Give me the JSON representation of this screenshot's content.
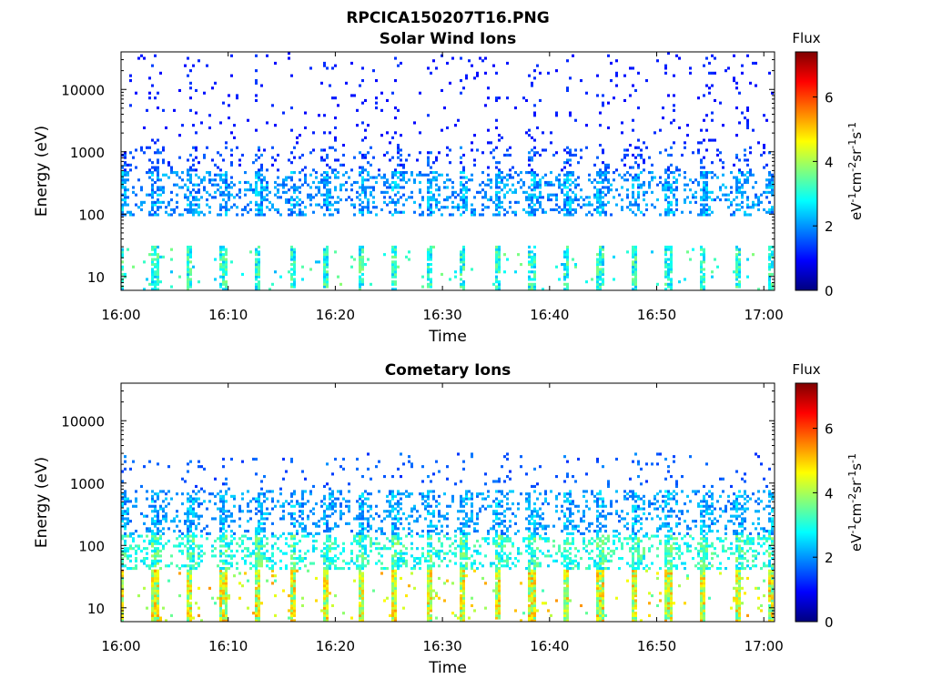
{
  "figure": {
    "title": "RPCICA150207T16.PNG",
    "colors": {
      "colormap": [
        "#00007f",
        "#0000ff",
        "#007fff",
        "#00ffff",
        "#7fff7f",
        "#ffff00",
        "#ff7f00",
        "#ff0000",
        "#7f0000"
      ],
      "background": "#ffffff",
      "axis": "#000000"
    }
  },
  "chart_data": [
    {
      "type": "heatmap",
      "title": "Solar Wind Ions",
      "xlabel": "Time",
      "ylabel": "Energy (eV)",
      "x_ticks": [
        "16:00",
        "16:10",
        "16:20",
        "16:30",
        "16:40",
        "16:50",
        "17:00"
      ],
      "x_range_minutes": [
        0,
        61
      ],
      "y_scale": "log",
      "y_ticks": [
        "10",
        "100",
        "1000",
        "10000"
      ],
      "y_tick_values": [
        10,
        100,
        1000,
        10000
      ],
      "ylim": [
        6,
        40000
      ],
      "colorbar": {
        "title": "Flux",
        "label": "eV-1cm-2sr-1s-1",
        "ticks": [
          "0",
          "2",
          "4",
          "6"
        ],
        "tick_values": [
          0,
          2,
          4,
          6
        ],
        "range": [
          0,
          7.4
        ]
      },
      "pattern": {
        "sweep_period_minutes": 3.2,
        "bands": [
          {
            "energy_range_eV": [
              6,
              30
            ],
            "flux_range": [
              2.2,
              3.8
            ],
            "density": 0.55
          },
          {
            "energy_range_eV": [
              95,
              500
            ],
            "flux_range": [
              1.5,
              2.8
            ],
            "density": 0.55
          },
          {
            "energy_range_eV": [
              400,
              1200
            ],
            "flux_range": [
              1.0,
              2.0
            ],
            "density": 0.22
          },
          {
            "energy_range_eV": [
              1200,
              40000
            ],
            "flux_range": [
              0.9,
              1.4
            ],
            "density": 0.06
          }
        ]
      },
      "grid": false
    },
    {
      "type": "heatmap",
      "title": "Cometary Ions",
      "xlabel": "Time",
      "ylabel": "Energy (eV)",
      "x_ticks": [
        "16:00",
        "16:10",
        "16:20",
        "16:30",
        "16:40",
        "16:50",
        "17:00"
      ],
      "x_range_minutes": [
        0,
        61
      ],
      "y_scale": "log",
      "y_ticks": [
        "10",
        "100",
        "1000",
        "10000"
      ],
      "y_tick_values": [
        10,
        100,
        1000,
        10000
      ],
      "ylim": [
        6,
        40000
      ],
      "colorbar": {
        "title": "Flux",
        "label": "eV-1cm-2sr-1s-1",
        "ticks": [
          "0",
          "2",
          "4",
          "6"
        ],
        "tick_values": [
          0,
          2,
          4,
          6
        ],
        "range": [
          0,
          7.4
        ]
      },
      "pattern": {
        "sweep_period_minutes": 3.2,
        "bands": [
          {
            "energy_range_eV": [
              6,
              40
            ],
            "flux_range": [
              3.2,
              5.4
            ],
            "density": 0.7
          },
          {
            "energy_range_eV": [
              40,
              150
            ],
            "flux_range": [
              2.4,
              4.0
            ],
            "density": 0.6
          },
          {
            "energy_range_eV": [
              150,
              800
            ],
            "flux_range": [
              1.6,
              2.8
            ],
            "density": 0.5
          },
          {
            "energy_range_eV": [
              800,
              3000
            ],
            "flux_range": [
              1.2,
              2.0
            ],
            "density": 0.08
          }
        ]
      },
      "grid": false
    }
  ]
}
